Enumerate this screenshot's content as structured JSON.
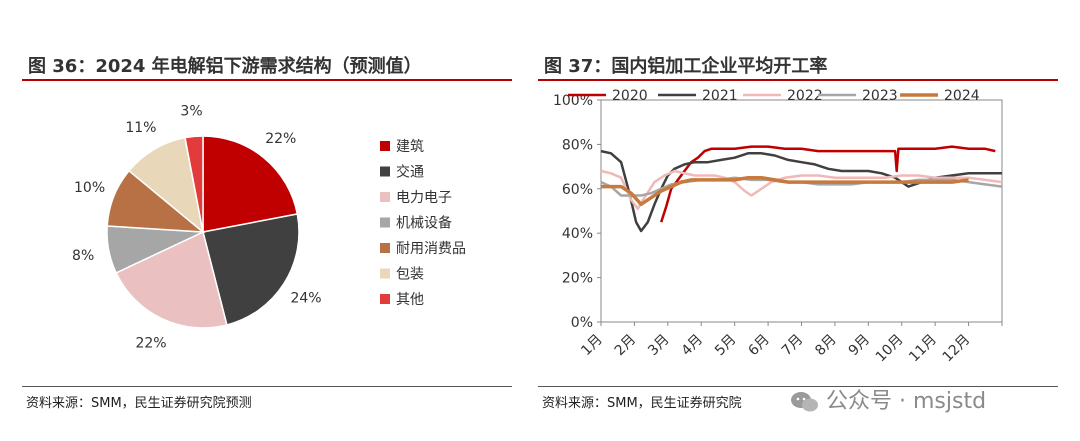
{
  "left": {
    "title": "图 36：2024 年电解铝下游需求结构（预测值）",
    "source": "资料来源：SMM，民生证券研究院预测"
  },
  "right": {
    "title": "图 37：国内铝加工企业平均开工率",
    "source": "资料来源：SMM，民生证券研究院"
  },
  "watermark": "公众号 · msjstd",
  "chart_data": [
    {
      "type": "pie",
      "title": "2024 年电解铝下游需求结构（预测值）",
      "unit": "%",
      "slices": [
        {
          "name": "建筑",
          "value": 22,
          "label": "22%",
          "color": "#c00000"
        },
        {
          "name": "交通",
          "value": 24,
          "label": "24%",
          "color": "#404040"
        },
        {
          "name": "电力电子",
          "value": 22,
          "label": "22%",
          "color": "#ebc0c0"
        },
        {
          "name": "机械设备",
          "value": 8,
          "label": "8%",
          "color": "#a6a6a6"
        },
        {
          "name": "耐用消费品",
          "value": 10,
          "label": "10%",
          "color": "#b87144"
        },
        {
          "name": "包装",
          "value": 11,
          "label": "11%",
          "color": "#e8d7b8"
        },
        {
          "name": "其他",
          "value": 3,
          "label": "3%",
          "color": "#e23b3b"
        }
      ],
      "legend": "right"
    },
    {
      "type": "line",
      "title": "国内铝加工企业平均开工率",
      "x_categories": [
        "1月",
        "2月",
        "3月",
        "4月",
        "5月",
        "6月",
        "7月",
        "8月",
        "9月",
        "10月",
        "11月",
        "12月"
      ],
      "ylim": [
        0,
        100
      ],
      "yticks": [
        "0%",
        "20%",
        "40%",
        "60%",
        "80%",
        "100%"
      ],
      "legend": "top",
      "series": [
        {
          "name": "2020",
          "color": "#c00000",
          "x": [
            2.8,
            2.95,
            3.1,
            3.3,
            3.5,
            3.7,
            3.9,
            4.1,
            4.3,
            4.6,
            5,
            5.5,
            6,
            6.5,
            7,
            7.5,
            8,
            8.5,
            9,
            9.5,
            9.8,
            9.85,
            9.9,
            10.2,
            10.5,
            11,
            11.5,
            12,
            12.5,
            12.8
          ],
          "y": [
            45,
            52,
            60,
            64,
            68,
            72,
            74,
            77,
            78,
            78,
            78,
            79,
            79,
            78,
            78,
            77,
            77,
            77,
            77,
            77,
            77,
            68,
            78,
            78,
            78,
            78,
            79,
            78,
            78,
            77
          ]
        },
        {
          "name": "2021",
          "color": "#404040",
          "x": [
            1,
            1.3,
            1.6,
            1.85,
            2.05,
            2.2,
            2.4,
            2.6,
            2.8,
            3,
            3.2,
            3.5,
            3.8,
            4.2,
            4.6,
            5,
            5.4,
            5.8,
            6.2,
            6.6,
            7,
            7.4,
            7.8,
            8.2,
            8.6,
            9,
            9.4,
            9.8,
            10.2,
            10.6,
            11,
            11.5,
            12,
            12.5,
            13
          ],
          "y": [
            77,
            76,
            72,
            58,
            45,
            41,
            45,
            53,
            60,
            66,
            69,
            71,
            72,
            72,
            73,
            74,
            76,
            76,
            75,
            73,
            72,
            71,
            69,
            68,
            68,
            68,
            67,
            65,
            61,
            63,
            65,
            66,
            67,
            67,
            67
          ]
        },
        {
          "name": "2022",
          "color": "#f0b8b8",
          "x": [
            1,
            1.3,
            1.6,
            1.9,
            2.1,
            2.3,
            2.6,
            2.9,
            3.2,
            3.5,
            3.8,
            4.1,
            4.4,
            4.7,
            5,
            5.3,
            5.5,
            5.8,
            6.1,
            6.5,
            7,
            7.5,
            8,
            8.5,
            9,
            9.5,
            10,
            10.5,
            11,
            11.5,
            12,
            12.5,
            13
          ],
          "y": [
            68,
            67,
            65,
            55,
            51,
            56,
            63,
            66,
            68,
            67,
            66,
            66,
            66,
            65,
            63,
            59,
            57,
            60,
            63,
            65,
            66,
            66,
            65,
            65,
            65,
            65,
            66,
            66,
            65,
            65,
            65,
            64,
            63
          ]
        },
        {
          "name": "2023",
          "color": "#a6a6a6",
          "x": [
            1,
            1.3,
            1.6,
            1.9,
            2.2,
            2.5,
            2.8,
            3.1,
            3.5,
            4,
            4.5,
            5,
            5.5,
            6,
            6.5,
            7,
            7.5,
            8,
            8.5,
            9,
            9.5,
            10,
            10.5,
            11,
            11.5,
            12,
            12.5,
            13
          ],
          "y": [
            63,
            61,
            57,
            57,
            57,
            58,
            60,
            62,
            63,
            64,
            64,
            65,
            64,
            64,
            63,
            63,
            62,
            62,
            62,
            63,
            63,
            63,
            64,
            64,
            64,
            63,
            62,
            61
          ]
        },
        {
          "name": "2024",
          "color": "#c87a3c",
          "x": [
            1,
            1.3,
            1.6,
            1.9,
            2.2,
            2.5,
            2.8,
            3.1,
            3.4,
            3.7,
            4,
            4.3,
            4.6,
            5,
            5.4,
            5.8,
            6.2,
            6.6,
            7,
            7.5,
            8,
            8.5,
            9,
            9.5,
            10,
            10.5,
            11,
            11.5,
            12
          ],
          "y": [
            61,
            61,
            61,
            58,
            53,
            56,
            59,
            61,
            63,
            64,
            64,
            64,
            64,
            64,
            65,
            65,
            64,
            63,
            63,
            63,
            63,
            63,
            63,
            63,
            63,
            63,
            63,
            63,
            64
          ]
        }
      ]
    }
  ]
}
